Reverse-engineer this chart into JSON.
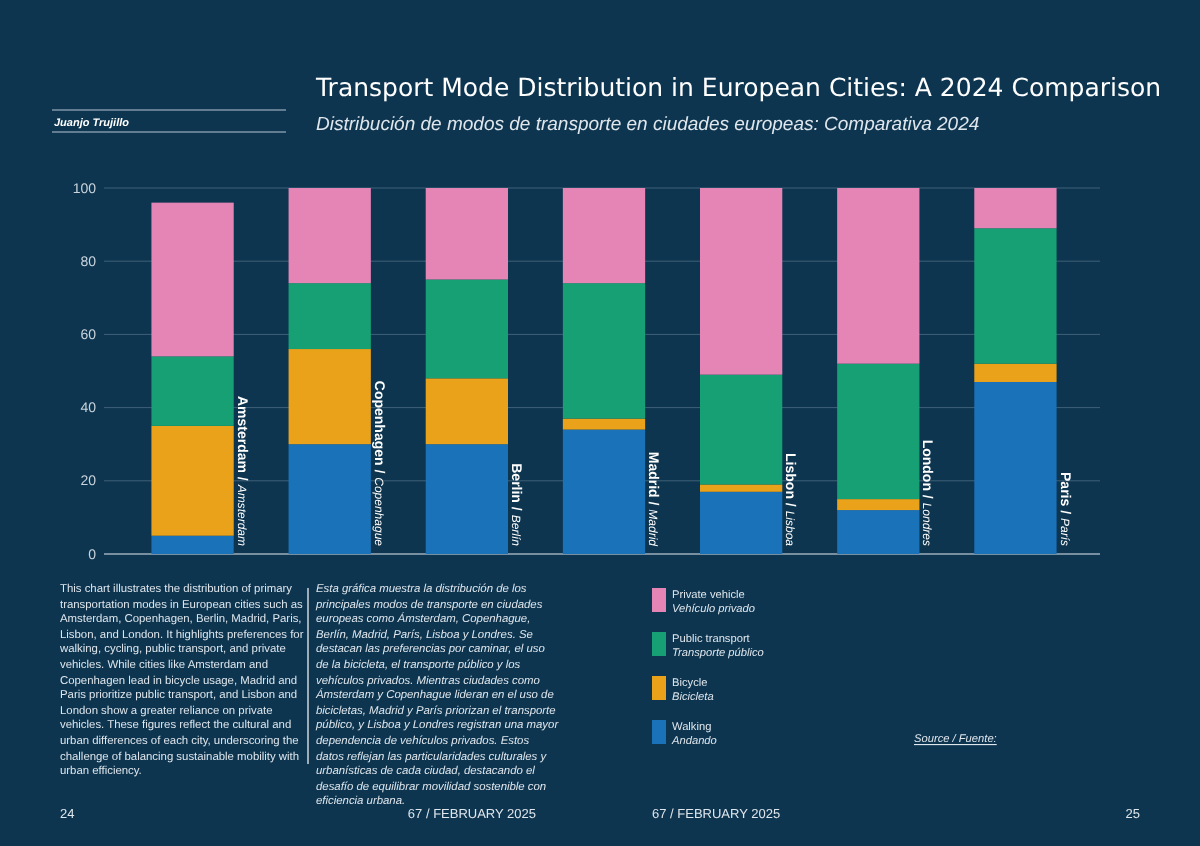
{
  "chart_data": {
    "type": "bar",
    "title": "Transport Mode Distribution in European Cities: A 2024 Comparison",
    "subtitle": "Distribución de modos de transporte en ciudades europeas: Comparativa 2024",
    "categories": [
      "Amsterdam / Amsterdam",
      "Copenhagen / Copenhague",
      "Berlin / Berlín",
      "Madrid / Madrid",
      "Lisbon / Lisboa",
      "London / Londres",
      "Paris / París"
    ],
    "series": [
      {
        "name": "Walking\nAndando",
        "color": "#1a72b9",
        "values": [
          5,
          30,
          30,
          34,
          17,
          12,
          47
        ]
      },
      {
        "name": "Bicycle\nBicicleta",
        "color": "#eba21b",
        "values": [
          30,
          26,
          18,
          3,
          2,
          3,
          5
        ]
      },
      {
        "name": "Public transport\nTransporte público",
        "color": "#17a073",
        "values": [
          19,
          18,
          27,
          37,
          30,
          37,
          37
        ]
      },
      {
        "name": "Private vehicle\nVehículo privado",
        "color": "#e485b6",
        "values": [
          42,
          26,
          25,
          26,
          51,
          48,
          11
        ]
      }
    ],
    "stacked": true,
    "ylim": [
      0,
      100
    ],
    "yticks": [
      0,
      20,
      40,
      60,
      80,
      100
    ],
    "grid": "y",
    "legend": "bottom",
    "annotations": [
      "Juanjo Trujillo",
      "This chart illustrates the distribution of primary transportation modes in European cities such as Amsterdam, Copenhagen, Berlin, Madrid, Paris, Lisbon, and London. It highlights preferences for walking, cycling, public transport, and private vehicles. While cities like Amsterdam and Copenhagen lead in bicycle usage, Madrid and Paris prioritize public transport, and Lisbon and London show a greater reliance on private vehicles. These figures reflect the cultural and urban differences of each city, underscoring the challenge of balancing sustainable mobility with urban efficiency.",
      "Esta gráfica muestra la distribución de los principales modos de transporte en ciudades europeas como Ámsterdam, Copenhague, Berlín, Madrid, París, Lisboa y Londres. Se destacan las preferencias por caminar, el uso de la bicicleta, el transporte público y los vehículos privados. Mientras ciudades como Ámsterdam y Copenhague lideran en el uso de bicicletas, Madrid y París priorizan el transporte público, y Lisboa y Londres registran una mayor dependencia de vehículos privados. Estos datos reflejan las particularidades culturales y urbanísticas de cada ciudad, destacando el desafío de equilibrar movilidad sostenible con eficiencia urbana.",
      "Source / Fuente:",
      "24",
      "67 / FEBRUARY 2025",
      "67 / FEBRUARY 2025",
      "25"
    ]
  }
}
